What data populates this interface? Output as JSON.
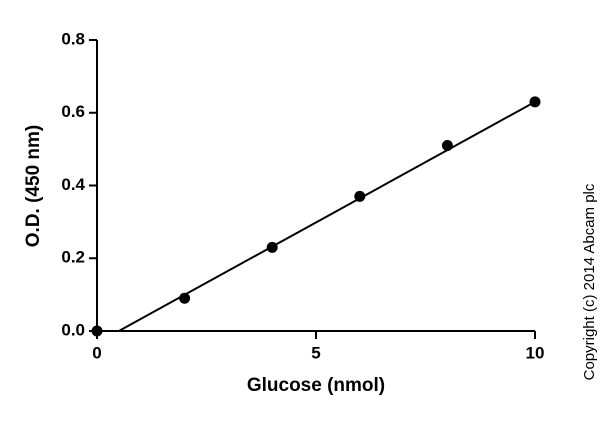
{
  "chart_data": {
    "type": "scatter",
    "x_label": "Glucose (nmol)",
    "y_label": "O.D. (450 nm)",
    "note": "Copyright (c) 2014 Abcam plc",
    "x": [
      0,
      2,
      4,
      6,
      8,
      10
    ],
    "values": [
      0,
      0.09,
      0.23,
      0.37,
      0.51,
      0.63
    ],
    "color": "#000000",
    "fit": {
      "x": [
        0.5,
        10
      ],
      "values": [
        0,
        0.63
      ]
    },
    "xlim": [
      0,
      10
    ],
    "xticks": [
      0,
      5,
      10
    ],
    "ylim": [
      0,
      0.8
    ],
    "yticks": [
      {
        "value": 0,
        "label": "0.0"
      },
      0.2,
      0.4,
      0.6,
      0.8
    ],
    "grid": false
  }
}
